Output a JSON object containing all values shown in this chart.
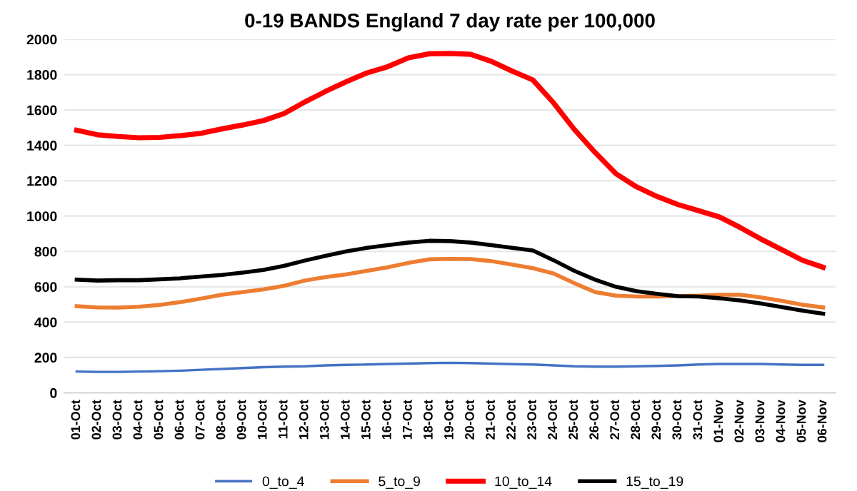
{
  "chart_data": {
    "type": "line",
    "title": "0-19 BANDS England 7 day rate per 100,000",
    "categories": [
      "01-Oct",
      "02-Oct",
      "03-Oct",
      "04-Oct",
      "05-Oct",
      "06-Oct",
      "07-Oct",
      "08-Oct",
      "09-Oct",
      "10-Oct",
      "11-Oct",
      "12-Oct",
      "13-Oct",
      "14-Oct",
      "15-Oct",
      "16-Oct",
      "17-Oct",
      "18-Oct",
      "19-Oct",
      "20-Oct",
      "21-Oct",
      "22-Oct",
      "23-Oct",
      "24-Oct",
      "25-Oct",
      "26-Oct",
      "27-Oct",
      "28-Oct",
      "29-Oct",
      "30-Oct",
      "31-Oct",
      "01-Nov",
      "02-Nov",
      "03-Nov",
      "04-Nov",
      "05-Nov",
      "06-Nov"
    ],
    "series": [
      {
        "name": "0_to_4",
        "color": "#4472c4",
        "values": [
          120,
          118,
          118,
          120,
          122,
          125,
          130,
          135,
          140,
          145,
          148,
          150,
          155,
          158,
          160,
          163,
          165,
          168,
          170,
          168,
          165,
          162,
          160,
          155,
          150,
          148,
          148,
          150,
          152,
          155,
          160,
          163,
          163,
          163,
          160,
          158,
          158
        ]
      },
      {
        "name": "5_to_9",
        "color": "#ed7d31",
        "values": [
          490,
          483,
          482,
          487,
          497,
          513,
          533,
          555,
          570,
          585,
          605,
          635,
          655,
          670,
          690,
          710,
          735,
          755,
          758,
          757,
          745,
          725,
          705,
          675,
          620,
          570,
          550,
          545,
          545,
          548,
          550,
          555,
          555,
          540,
          520,
          498,
          483
        ]
      },
      {
        "name": "10_to_14",
        "color": "#ff0000",
        "values": [
          1485,
          1460,
          1450,
          1443,
          1445,
          1455,
          1468,
          1493,
          1515,
          1540,
          1580,
          1645,
          1705,
          1760,
          1810,
          1845,
          1895,
          1918,
          1920,
          1915,
          1875,
          1820,
          1770,
          1640,
          1490,
          1360,
          1240,
          1165,
          1110,
          1065,
          1030,
          995,
          935,
          870,
          810,
          750,
          710
        ]
      },
      {
        "name": "15_to_19",
        "color": "#000000",
        "values": [
          640,
          635,
          637,
          637,
          642,
          648,
          658,
          667,
          680,
          695,
          718,
          748,
          775,
          800,
          820,
          835,
          850,
          860,
          858,
          850,
          835,
          820,
          805,
          750,
          690,
          640,
          600,
          575,
          560,
          547,
          545,
          535,
          522,
          505,
          485,
          465,
          447
        ]
      }
    ],
    "ylim": [
      0,
      2000
    ],
    "yticks": [
      0,
      200,
      400,
      600,
      800,
      1000,
      1200,
      1400,
      1600,
      1800,
      2000
    ],
    "grid": "y",
    "legend": "bottom",
    "marker": "none",
    "line_style": "solid"
  }
}
